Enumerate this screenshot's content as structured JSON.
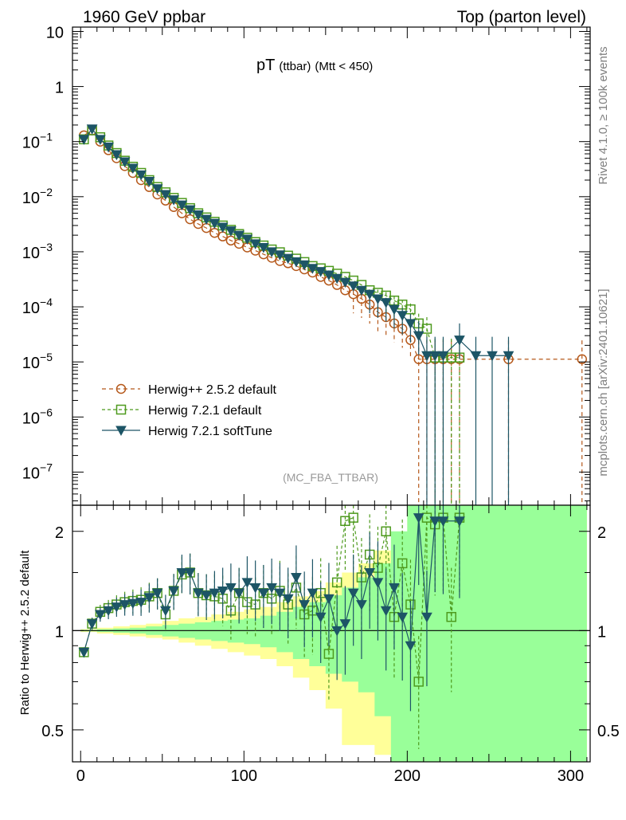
{
  "header": {
    "left": "1960 GeV ppbar",
    "right": "Top (parton level)"
  },
  "side_labels": {
    "rivet": "Rivet 4.1.0, ≥ 100k events",
    "mcplots": "mcplots.cern.ch [arXiv:2401.10621]"
  },
  "colors": {
    "herwigpp": "#b5581a",
    "herwig721": "#4e9a1e",
    "softtune": "#1d5566",
    "band_outer": "#ffff99",
    "band_inner": "#99ff99"
  },
  "chart_data": [
    {
      "type": "scatter",
      "panel": "main",
      "title": "pT",
      "title_sub": "(ttbar)",
      "title_cut": "(Mtt < 450)",
      "watermark": "(MC_FBA_TTBAR)",
      "yscale": "log",
      "ylim": [
        2.5e-08,
        12
      ],
      "xlim": [
        -5,
        312
      ],
      "y_ticks": [
        {
          "v": 10,
          "base": "10",
          "exp": ""
        },
        {
          "v": 1,
          "base": "1",
          "exp": ""
        },
        {
          "v": 0.1,
          "base": "10",
          "exp": "−1"
        },
        {
          "v": 0.01,
          "base": "10",
          "exp": "−2"
        },
        {
          "v": 0.001,
          "base": "10",
          "exp": "−3"
        },
        {
          "v": 0.0001,
          "base": "10",
          "exp": "−4"
        },
        {
          "v": 1e-05,
          "base": "10",
          "exp": "−5"
        },
        {
          "v": 1e-06,
          "base": "10",
          "exp": "−6"
        },
        {
          "v": 1e-07,
          "base": "10",
          "exp": "−7"
        }
      ],
      "legend": [
        {
          "label": "Herwig++ 2.5.2 default",
          "marker": "circle",
          "style": "dashed",
          "color": "#b5581a"
        },
        {
          "label": "Herwig 7.2.1 default",
          "marker": "square",
          "style": "dashed",
          "color": "#4e9a1e"
        },
        {
          "label": "Herwig 7.2.1 softTune",
          "marker": "triangle-down",
          "style": "solid",
          "color": "#1d5566"
        }
      ],
      "series": [
        {
          "name": "Herwig++ 2.5.2 default",
          "x": [
            2,
            7,
            12,
            17,
            22,
            27,
            32,
            37,
            42,
            47,
            52,
            57,
            62,
            67,
            72,
            77,
            82,
            87,
            92,
            97,
            102,
            107,
            112,
            117,
            122,
            127,
            132,
            137,
            142,
            147,
            152,
            157,
            162,
            167,
            172,
            177,
            182,
            187,
            192,
            197,
            202,
            207,
            212,
            217,
            222,
            227,
            232,
            262,
            307
          ],
          "y": [
            0.13,
            0.16,
            0.1,
            0.07,
            0.05,
            0.036,
            0.027,
            0.02,
            0.015,
            0.011,
            0.0085,
            0.0065,
            0.005,
            0.0039,
            0.0032,
            0.0027,
            0.0022,
            0.0019,
            0.0016,
            0.0014,
            0.0012,
            0.00105,
            0.0009,
            0.00078,
            0.00068,
            0.00062,
            0.00055,
            0.00048,
            0.00042,
            0.00035,
            0.0003,
            0.00025,
            0.0002,
            0.00017,
            0.00014,
            0.00011,
            8e-05,
            6.5e-05,
            5e-05,
            4e-05,
            2.5e-05,
            1.12e-05,
            1.12e-05,
            1.12e-05,
            1.12e-05,
            1.12e-05,
            1.12e-05,
            1.12e-05,
            1.12e-05
          ]
        },
        {
          "name": "Herwig 7.2.1 default",
          "x": [
            2,
            7,
            12,
            17,
            22,
            27,
            32,
            37,
            42,
            47,
            52,
            57,
            62,
            67,
            72,
            77,
            82,
            87,
            92,
            97,
            102,
            107,
            112,
            117,
            122,
            127,
            132,
            137,
            142,
            147,
            152,
            157,
            162,
            167,
            172,
            177,
            182,
            187,
            192,
            197,
            202,
            207,
            212,
            217,
            222,
            227,
            232
          ],
          "y": [
            0.11,
            0.16,
            0.12,
            0.085,
            0.062,
            0.045,
            0.035,
            0.027,
            0.02,
            0.015,
            0.012,
            0.0095,
            0.0077,
            0.0062,
            0.005,
            0.0042,
            0.0035,
            0.003,
            0.0025,
            0.0021,
            0.0018,
            0.0015,
            0.0013,
            0.0011,
            0.00098,
            0.00085,
            0.00075,
            0.00065,
            0.00055,
            0.0005,
            0.00045,
            0.0004,
            0.00035,
            0.0003,
            0.00025,
            0.0002,
            0.00018,
            0.00016,
            0.00013,
            0.00011,
            9e-05,
            5e-05,
            4e-05,
            1.2e-05,
            1.2e-05,
            1.2e-05,
            1.2e-05
          ]
        },
        {
          "name": "Herwig 7.2.1 softTune",
          "x": [
            2,
            7,
            12,
            17,
            22,
            27,
            32,
            37,
            42,
            47,
            52,
            57,
            62,
            67,
            72,
            77,
            82,
            87,
            92,
            97,
            102,
            107,
            112,
            117,
            122,
            127,
            132,
            137,
            142,
            147,
            152,
            157,
            162,
            167,
            172,
            177,
            182,
            187,
            192,
            197,
            202,
            207,
            212,
            217,
            222,
            232,
            242,
            252,
            262
          ],
          "y": [
            0.11,
            0.17,
            0.11,
            0.08,
            0.058,
            0.043,
            0.033,
            0.025,
            0.019,
            0.014,
            0.011,
            0.0088,
            0.0071,
            0.0058,
            0.0047,
            0.0039,
            0.0033,
            0.0028,
            0.0024,
            0.002,
            0.0017,
            0.0014,
            0.0012,
            0.001,
            0.00088,
            0.00076,
            0.00066,
            0.00058,
            0.0005,
            0.00044,
            0.00038,
            0.00033,
            0.00028,
            0.00024,
            0.0002,
            0.00017,
            0.00014,
            0.00012,
            9e-05,
            7e-05,
            5e-05,
            3e-05,
            1.3e-05,
            1.3e-05,
            1.3e-05,
            2.5e-05,
            1.3e-05,
            1.3e-05,
            1.3e-05
          ]
        }
      ]
    },
    {
      "type": "scatter",
      "panel": "ratio",
      "ylabel": "Ratio to Herwig++ 2.5.2 default",
      "yscale": "log",
      "ylim": [
        0.4,
        2.4
      ],
      "xlim": [
        -5,
        312
      ],
      "y_ticks": [
        0.5,
        1,
        2
      ],
      "y_tick_labels": [
        "0.5",
        "1",
        "2"
      ],
      "x_ticks": [
        0,
        100,
        200,
        300
      ],
      "x_tick_labels": [
        "0",
        "100",
        "200",
        "300"
      ],
      "bands": {
        "x": [
          0,
          10,
          20,
          30,
          40,
          50,
          60,
          70,
          80,
          90,
          100,
          110,
          120,
          130,
          140,
          150,
          160,
          170,
          180,
          190,
          200,
          210,
          220,
          230,
          240,
          260,
          300
        ],
        "outer_upper": [
          1.01,
          1.02,
          1.03,
          1.04,
          1.05,
          1.07,
          1.09,
          1.1,
          1.12,
          1.14,
          1.16,
          1.18,
          1.22,
          1.27,
          1.32,
          1.4,
          1.5,
          1.6,
          1.75,
          1.9,
          2.4,
          2.4,
          2.4,
          2.4,
          2.4,
          2.4,
          2.4
        ],
        "outer_lower": [
          0.99,
          0.98,
          0.97,
          0.96,
          0.95,
          0.94,
          0.92,
          0.9,
          0.88,
          0.86,
          0.84,
          0.82,
          0.78,
          0.72,
          0.66,
          0.58,
          0.45,
          0.45,
          0.42,
          0.4,
          0.4,
          0.4,
          0.4,
          0.4,
          0.4,
          0.4,
          0.4
        ],
        "inner_upper": [
          1.005,
          1.01,
          1.015,
          1.02,
          1.03,
          1.04,
          1.05,
          1.06,
          1.07,
          1.08,
          1.09,
          1.11,
          1.14,
          1.18,
          1.22,
          1.28,
          1.35,
          1.45,
          1.6,
          2.0,
          2.4,
          2.4,
          2.4,
          2.4,
          2.4,
          2.4,
          2.4
        ],
        "inner_lower": [
          0.995,
          0.99,
          0.985,
          0.98,
          0.97,
          0.96,
          0.95,
          0.94,
          0.93,
          0.92,
          0.91,
          0.89,
          0.86,
          0.82,
          0.78,
          0.74,
          0.7,
          0.65,
          0.55,
          0.4,
          0.4,
          0.4,
          0.4,
          0.4,
          0.4,
          0.4,
          0.4
        ]
      },
      "series": [
        {
          "name": "Herwig 7.2.1 default",
          "x": [
            2,
            7,
            12,
            17,
            22,
            27,
            32,
            37,
            42,
            47,
            52,
            57,
            62,
            67,
            72,
            77,
            82,
            87,
            92,
            97,
            102,
            107,
            112,
            117,
            122,
            127,
            132,
            137,
            142,
            147,
            152,
            157,
            162,
            167,
            172,
            177,
            182,
            187,
            192,
            197,
            202,
            207,
            212,
            217,
            222,
            227,
            232
          ],
          "y": [
            0.86,
            1.05,
            1.14,
            1.17,
            1.2,
            1.22,
            1.23,
            1.24,
            1.27,
            1.3,
            1.12,
            1.32,
            1.48,
            1.5,
            1.3,
            1.28,
            1.27,
            1.25,
            1.15,
            1.3,
            1.22,
            1.2,
            1.3,
            1.25,
            1.32,
            1.2,
            1.35,
            1.12,
            1.15,
            1.3,
            0.85,
            1.4,
            2.15,
            2.2,
            1.45,
            1.7,
            1.55,
            2.0,
            1.1,
            1.6,
            1.2,
            0.7,
            2.2,
            2.1,
            2.2,
            1.1,
            2.2
          ]
        },
        {
          "name": "Herwig 7.2.1 softTune",
          "x": [
            2,
            7,
            12,
            17,
            22,
            27,
            32,
            37,
            42,
            47,
            52,
            57,
            62,
            67,
            72,
            77,
            82,
            87,
            92,
            97,
            102,
            107,
            112,
            117,
            122,
            127,
            132,
            137,
            142,
            147,
            152,
            157,
            162,
            167,
            172,
            177,
            182,
            187,
            192,
            197,
            202,
            207,
            212,
            217,
            222,
            232
          ],
          "y": [
            0.86,
            1.05,
            1.12,
            1.15,
            1.18,
            1.2,
            1.21,
            1.22,
            1.26,
            1.3,
            1.15,
            1.32,
            1.5,
            1.5,
            1.3,
            1.28,
            1.3,
            1.32,
            1.35,
            1.3,
            1.4,
            1.35,
            1.3,
            1.35,
            1.3,
            1.25,
            1.45,
            1.2,
            1.3,
            1.1,
            1.25,
            1.0,
            1.05,
            1.3,
            1.2,
            1.5,
            1.4,
            1.15,
            1.35,
            1.1,
            0.9,
            2.2,
            1.1,
            2.15,
            2.15,
            2.15
          ]
        }
      ]
    }
  ]
}
